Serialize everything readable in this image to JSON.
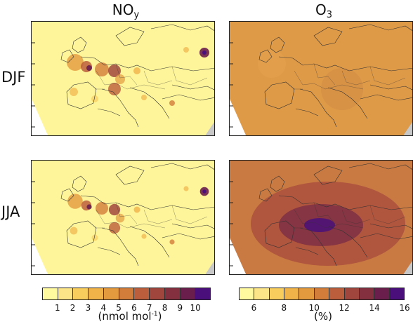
{
  "columns": {
    "left_title": "NO",
    "left_sub": "y",
    "right_title": "O",
    "right_sub": "3"
  },
  "rows": {
    "top": "DJF",
    "bottom": "JJA"
  },
  "colorbars": {
    "noy": {
      "colors": [
        "#fffaa0",
        "#fce588",
        "#f8cd5e",
        "#f0b34a",
        "#e39a3e",
        "#d37d3a",
        "#bb5e3b",
        "#a1463d",
        "#84303f",
        "#6a1e4b",
        "#4a0f7a"
      ],
      "ticks": [
        "1",
        "2",
        "3",
        "4",
        "5",
        "6",
        "7",
        "8",
        "9",
        "10"
      ],
      "unit_main": "(nmol mol",
      "unit_sup": "-1",
      "unit_end": ")"
    },
    "o3": {
      "colors": [
        "#fffaa0",
        "#fce588",
        "#f8cd5e",
        "#f0b34a",
        "#e39a3e",
        "#d37d3a",
        "#bb5e3b",
        "#a1463d",
        "#84303f",
        "#6a1e4b",
        "#4a0f7a"
      ],
      "ticks": [
        "6",
        "8",
        "10",
        "12",
        "14",
        "16"
      ],
      "unit": "(%)"
    }
  },
  "map_colors": {
    "noy_background": "#fef59a",
    "o3_djf_background": "#df9a48",
    "o3_jja_background": "#c87a42",
    "outside_domain": "#ffffff",
    "missing_gray": "#c8c8c8",
    "coastline": "#333333"
  }
}
